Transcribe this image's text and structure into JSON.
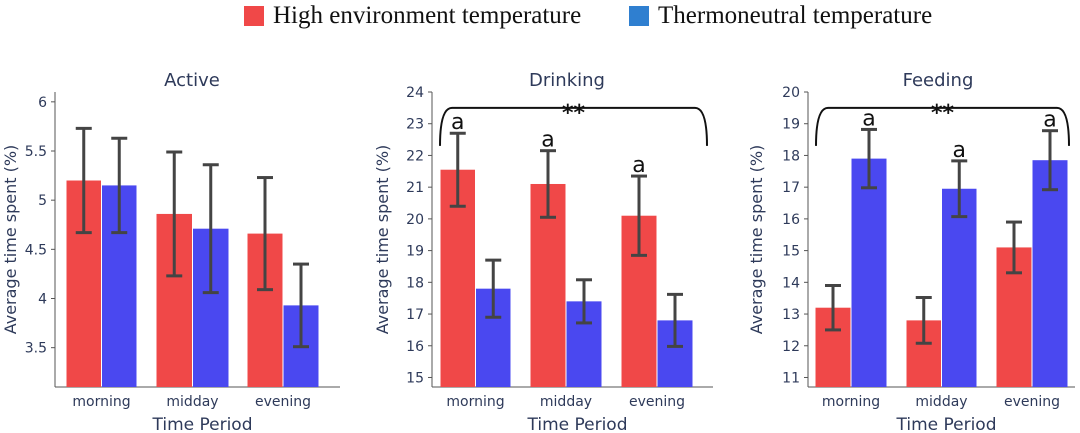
{
  "legend": [
    {
      "label": "High environment temperature",
      "color": "#f04848"
    },
    {
      "label": "Thermoneutral temperature",
      "color": "#4a48f0"
    }
  ],
  "colors": {
    "high": "#f04848",
    "thermo": "#4a48f0",
    "error": "#444444",
    "axis": "#2e3a5a"
  },
  "chart_data": [
    {
      "type": "bar",
      "title": "Active",
      "xlabel": "Time Period",
      "ylabel": "Average time spent (%)",
      "categories": [
        "morning",
        "midday",
        "evening"
      ],
      "ylim": [
        3.1,
        6.1
      ],
      "yticks": [
        3.5,
        4,
        4.5,
        5,
        5.5,
        6
      ],
      "ytick_labels": [
        "3.5",
        "4",
        "4.5",
        "5",
        "5.5",
        "6"
      ],
      "series": [
        {
          "name": "High environment temperature",
          "values": [
            5.2,
            4.86,
            4.66
          ],
          "errors": [
            0.53,
            0.63,
            0.57
          ]
        },
        {
          "name": "Thermoneutral temperature",
          "values": [
            5.15,
            4.71,
            3.93
          ],
          "errors": [
            0.48,
            0.65,
            0.42
          ]
        }
      ],
      "annotations": []
    },
    {
      "type": "bar",
      "title": "Drinking",
      "xlabel": "Time Period",
      "ylabel": "Average time spent (%)",
      "categories": [
        "morning",
        "midday",
        "evening"
      ],
      "ylim": [
        14.7,
        24
      ],
      "yticks": [
        15,
        16,
        17,
        18,
        19,
        20,
        21,
        22,
        23,
        24
      ],
      "ytick_labels": [
        "15",
        "16",
        "17",
        "18",
        "19",
        "20",
        "21",
        "22",
        "23",
        "24"
      ],
      "series": [
        {
          "name": "High environment temperature",
          "values": [
            21.55,
            21.1,
            20.1
          ],
          "errors": [
            1.15,
            1.05,
            1.25
          ]
        },
        {
          "name": "Thermoneutral temperature",
          "values": [
            17.8,
            17.4,
            16.8
          ],
          "errors": [
            0.9,
            0.68,
            0.82
          ]
        }
      ],
      "annotations": [
        {
          "text": "a",
          "category": 0,
          "series": 0
        },
        {
          "text": "a",
          "category": 1,
          "series": 0
        },
        {
          "text": "a",
          "category": 2,
          "series": 0
        }
      ],
      "significance": {
        "label": "**",
        "bracket_y": 23.5
      }
    },
    {
      "type": "bar",
      "title": "Feeding",
      "xlabel": "Time Period",
      "ylabel": "Average time spent (%)",
      "categories": [
        "morning",
        "midday",
        "evening"
      ],
      "ylim": [
        10.7,
        20
      ],
      "yticks": [
        11,
        12,
        13,
        14,
        15,
        16,
        17,
        18,
        19,
        20
      ],
      "ytick_labels": [
        "11",
        "12",
        "13",
        "14",
        "15",
        "16",
        "17",
        "18",
        "19",
        "20"
      ],
      "series": [
        {
          "name": "High environment temperature",
          "values": [
            13.2,
            12.8,
            15.1
          ],
          "errors": [
            0.7,
            0.72,
            0.8
          ]
        },
        {
          "name": "Thermoneutral temperature",
          "values": [
            17.9,
            16.95,
            17.85
          ],
          "errors": [
            0.92,
            0.88,
            0.93
          ]
        }
      ],
      "annotations": [
        {
          "text": "a",
          "category": 0,
          "series": 1
        },
        {
          "text": "a",
          "category": 1,
          "series": 1
        },
        {
          "text": "a",
          "category": 2,
          "series": 1
        }
      ],
      "significance": {
        "label": "**",
        "bracket_y": 19.5
      }
    }
  ]
}
